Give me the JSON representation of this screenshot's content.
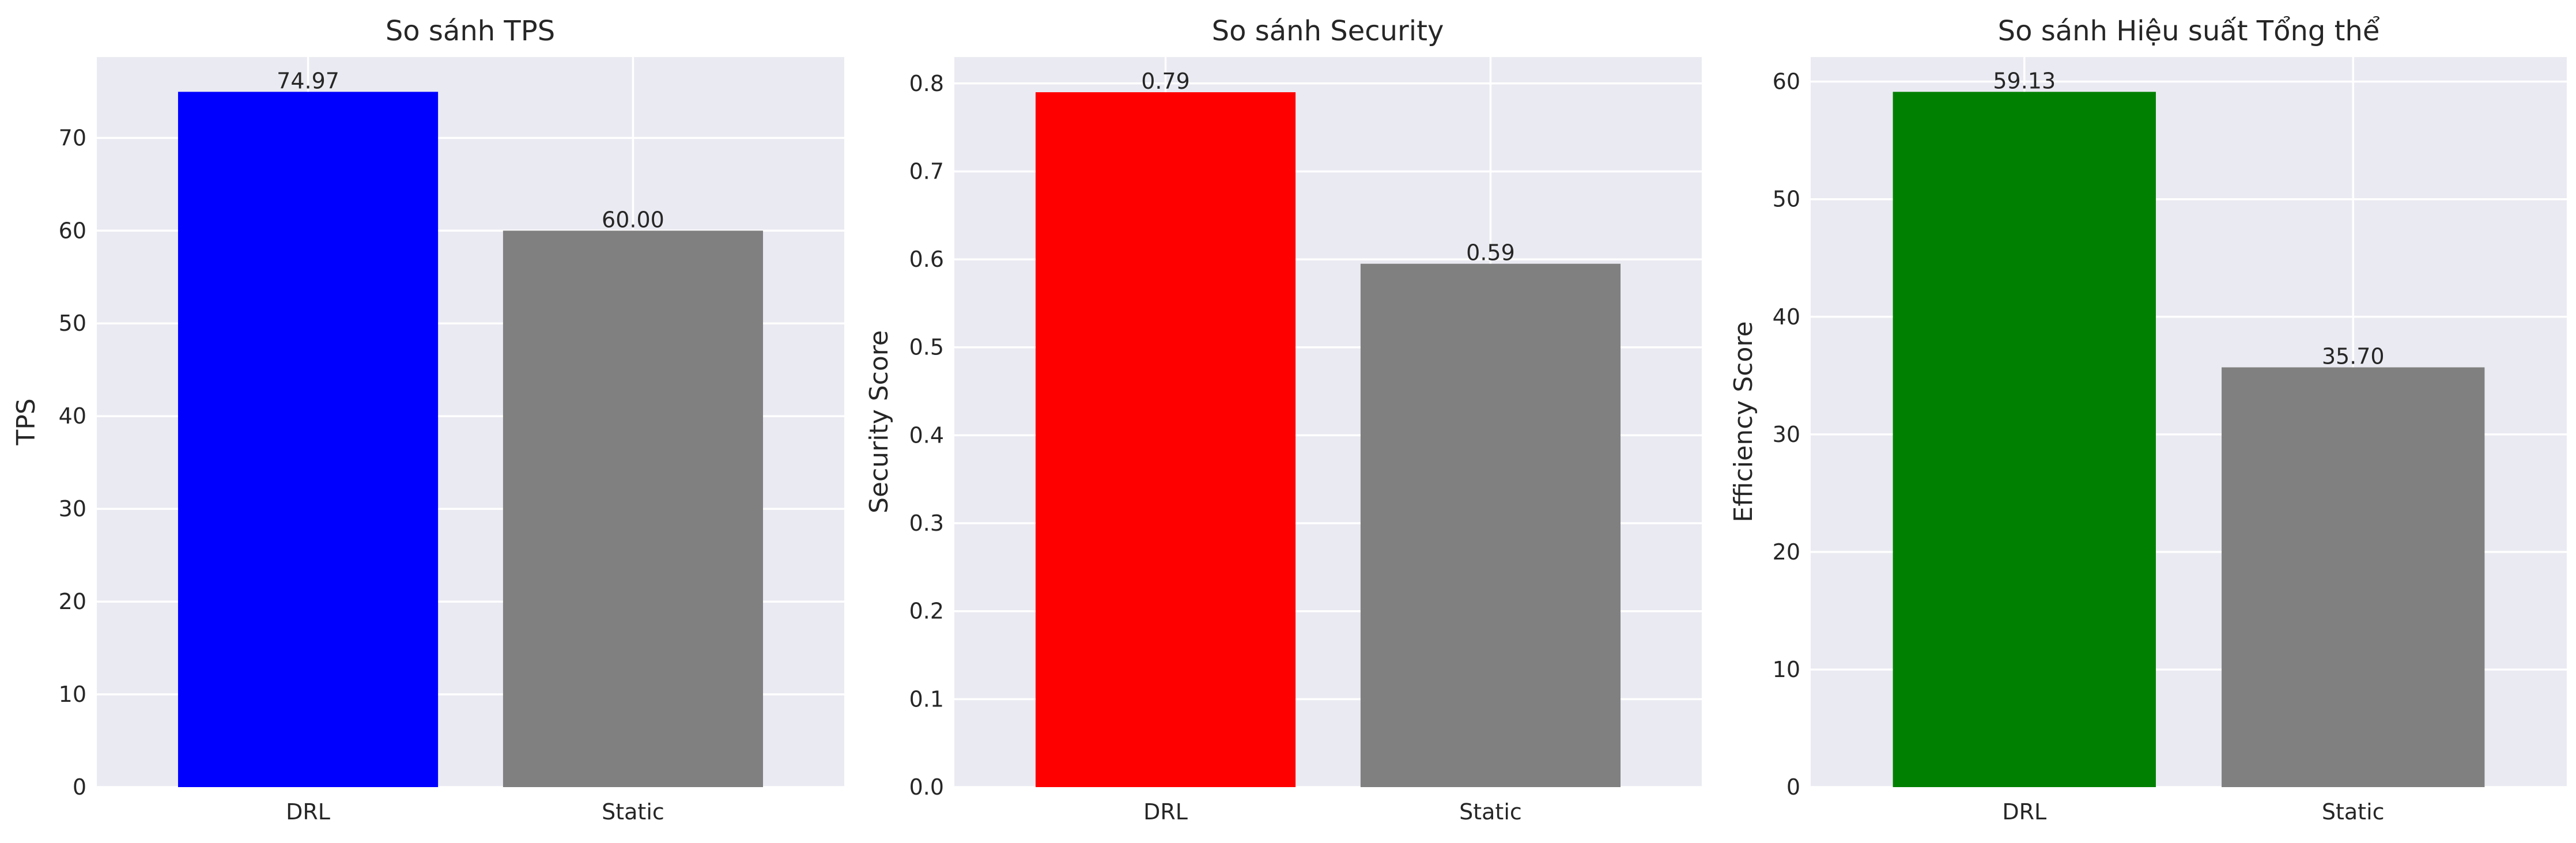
{
  "chart_data": [
    {
      "type": "bar",
      "title": "So sánh TPS",
      "xlabel": "",
      "ylabel": "TPS",
      "categories": [
        "DRL",
        "Static"
      ],
      "values": [
        74.97,
        60.0
      ],
      "value_labels": [
        "74.97",
        "60.00"
      ],
      "colors": [
        "#0000ff",
        "#808080"
      ],
      "ylim": [
        0,
        78.72
      ],
      "yticks": [
        0,
        10,
        20,
        30,
        40,
        50,
        60,
        70
      ],
      "ytick_labels": [
        "0",
        "10",
        "20",
        "30",
        "40",
        "50",
        "60",
        "70"
      ],
      "grid": true
    },
    {
      "type": "bar",
      "title": "So sánh Security",
      "xlabel": "",
      "ylabel": "Security Score",
      "categories": [
        "DRL",
        "Static"
      ],
      "values": [
        0.79,
        0.595
      ],
      "value_labels": [
        "0.79",
        "0.59"
      ],
      "colors": [
        "#ff0000",
        "#808080"
      ],
      "ylim": [
        0,
        0.83
      ],
      "yticks": [
        0.0,
        0.1,
        0.2,
        0.3,
        0.4,
        0.5,
        0.6,
        0.7,
        0.8
      ],
      "ytick_labels": [
        "0.0",
        "0.1",
        "0.2",
        "0.3",
        "0.4",
        "0.5",
        "0.6",
        "0.7",
        "0.8"
      ],
      "grid": true
    },
    {
      "type": "bar",
      "title": "So sánh Hiệu suất Tổng thể",
      "xlabel": "",
      "ylabel": "Efficiency Score",
      "categories": [
        "DRL",
        "Static"
      ],
      "values": [
        59.13,
        35.7
      ],
      "value_labels": [
        "59.13",
        "35.70"
      ],
      "colors": [
        "#008000",
        "#808080"
      ],
      "ylim": [
        0,
        62.09
      ],
      "yticks": [
        0,
        10,
        20,
        30,
        40,
        50,
        60
      ],
      "ytick_labels": [
        "0",
        "10",
        "20",
        "30",
        "40",
        "50",
        "60"
      ],
      "grid": true
    }
  ]
}
